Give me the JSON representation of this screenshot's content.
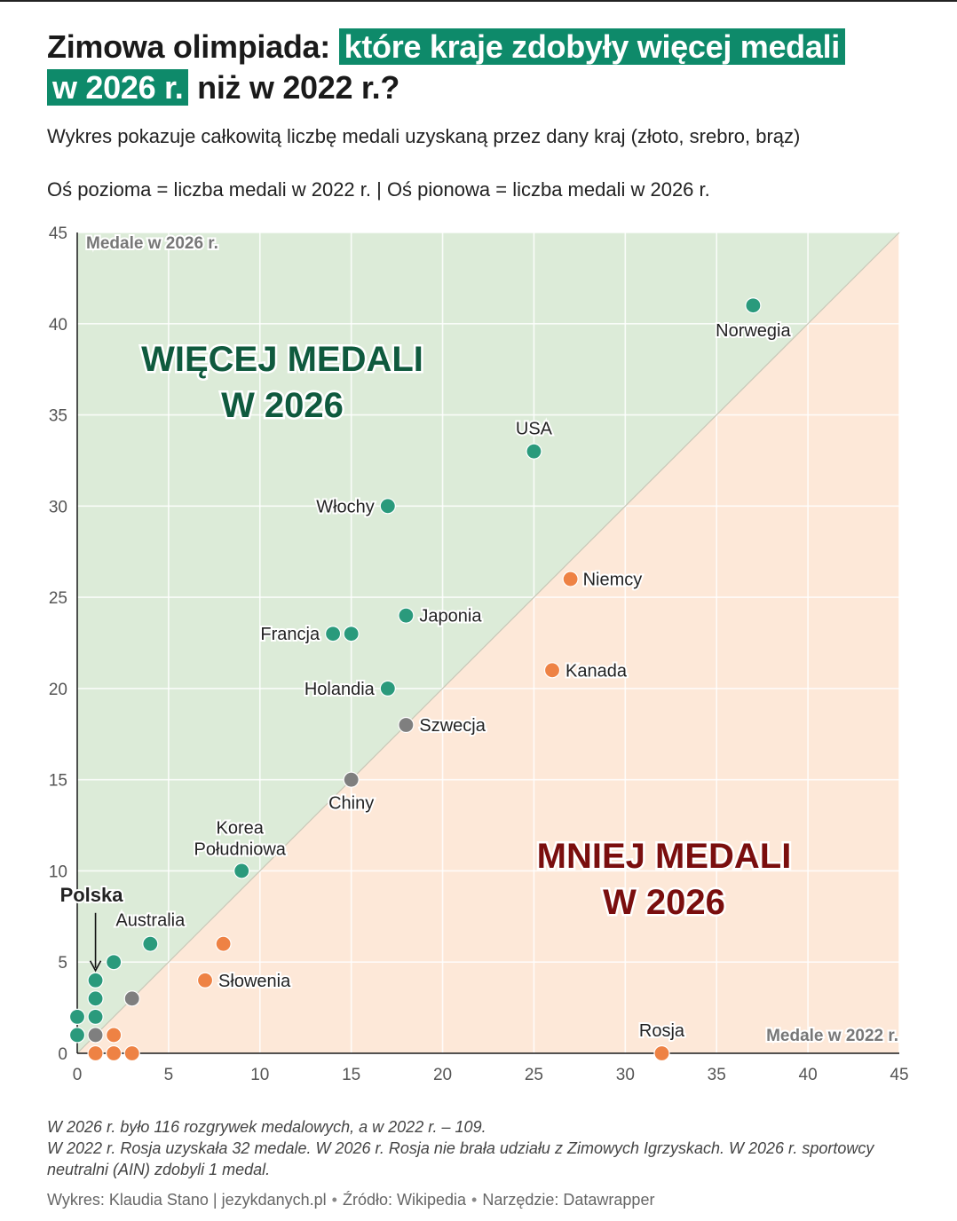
{
  "title": {
    "part1": "Zimowa olimpiada:",
    "highlight1": "które kraje zdobyły więcej medali",
    "highlight2": "w 2026 r.",
    "part2": "niż w 2022 r.?"
  },
  "subtitle": "Wykres pokazuje całkowitą liczbę medali uzyskaną przez dany kraj (złoto, srebro, brąz)",
  "axis_note": "Oś pozioma = liczba medali w 2022 r. | Oś pionowa = liczba medali w 2026 r.",
  "colors": {
    "more_bg": "#dcebd8",
    "less_bg": "#fde8d8",
    "more_point": "#2a9a7c",
    "less_point": "#ee8244",
    "equal_point": "#7f7f7f",
    "more_label": "#0f5a3e",
    "less_label": "#7a0e0e",
    "grid": "#ffffff",
    "axis": "#1a1a1a",
    "tick": "#555555"
  },
  "chart_data": {
    "type": "scatter",
    "xlabel": "Medale w 2022 r.",
    "ylabel": "Medale w 2026 r.",
    "xlim": [
      0,
      45
    ],
    "ylim": [
      0,
      45
    ],
    "xticks": [
      0,
      5,
      10,
      15,
      20,
      25,
      30,
      35,
      40,
      45
    ],
    "yticks": [
      0,
      5,
      10,
      15,
      20,
      25,
      30,
      35,
      40,
      45
    ],
    "grid": true,
    "region_labels": {
      "more": [
        "WIĘCEJ MEDALI",
        "W 2026"
      ],
      "less": [
        "MNIEJ MEDALI",
        "W 2026"
      ]
    },
    "highlight": {
      "label": "Polska",
      "x": 1,
      "y": 4
    },
    "points": [
      {
        "label": "Norwegia",
        "x": 37,
        "y": 41,
        "group": "more"
      },
      {
        "label": "USA",
        "x": 25,
        "y": 33,
        "group": "more"
      },
      {
        "label": "Włochy",
        "x": 17,
        "y": 30,
        "group": "more"
      },
      {
        "label": "Niemcy",
        "x": 27,
        "y": 26,
        "group": "less"
      },
      {
        "label": "Japonia",
        "x": 18,
        "y": 24,
        "group": "more"
      },
      {
        "label": "Francja",
        "x": 14,
        "y": 23,
        "group": "more"
      },
      {
        "label": "",
        "x": 15,
        "y": 23,
        "group": "more"
      },
      {
        "label": "Kanada",
        "x": 26,
        "y": 21,
        "group": "less"
      },
      {
        "label": "Holandia",
        "x": 17,
        "y": 20,
        "group": "more"
      },
      {
        "label": "Szwecja",
        "x": 18,
        "y": 18,
        "group": "equal"
      },
      {
        "label": "Chiny",
        "x": 15,
        "y": 15,
        "group": "equal"
      },
      {
        "label": "Korea Południowa",
        "x": 9,
        "y": 10,
        "group": "more"
      },
      {
        "label": "Australia",
        "x": 4,
        "y": 6,
        "group": "more"
      },
      {
        "label": "",
        "x": 8,
        "y": 6,
        "group": "less"
      },
      {
        "label": "",
        "x": 2,
        "y": 5,
        "group": "more"
      },
      {
        "label": "Słowenia",
        "x": 7,
        "y": 4,
        "group": "less"
      },
      {
        "label": "",
        "x": 1,
        "y": 4,
        "group": "more"
      },
      {
        "label": "",
        "x": 1,
        "y": 3,
        "group": "more"
      },
      {
        "label": "",
        "x": 3,
        "y": 3,
        "group": "equal"
      },
      {
        "label": "",
        "x": 0,
        "y": 2,
        "group": "more"
      },
      {
        "label": "",
        "x": 1,
        "y": 2,
        "group": "more"
      },
      {
        "label": "",
        "x": 0,
        "y": 1,
        "group": "more"
      },
      {
        "label": "",
        "x": 1,
        "y": 1,
        "group": "equal"
      },
      {
        "label": "",
        "x": 2,
        "y": 1,
        "group": "less"
      },
      {
        "label": "",
        "x": 1,
        "y": 0,
        "group": "less"
      },
      {
        "label": "",
        "x": 2,
        "y": 0,
        "group": "less"
      },
      {
        "label": "",
        "x": 3,
        "y": 0,
        "group": "less"
      },
      {
        "label": "Rosja",
        "x": 32,
        "y": 0,
        "group": "less"
      }
    ]
  },
  "footer": {
    "note1": "W 2026 r. było 116 rozgrywek medalowych, a w 2022 r. – 109.",
    "note2": "W 2022 r. Rosja uzyskała 32 medale. W 2026 r. Rosja nie brała udziału z Zimowych Igrzyskach. W 2026 r. sportowcy neutralni (AIN) zdobyli 1 medal."
  },
  "credit": {
    "author": "Wykres: Klaudia Stano | jezykdanych.pl",
    "source": "Źródło: Wikipedia",
    "tool": "Narzędzie: Datawrapper",
    "separator": "•"
  }
}
